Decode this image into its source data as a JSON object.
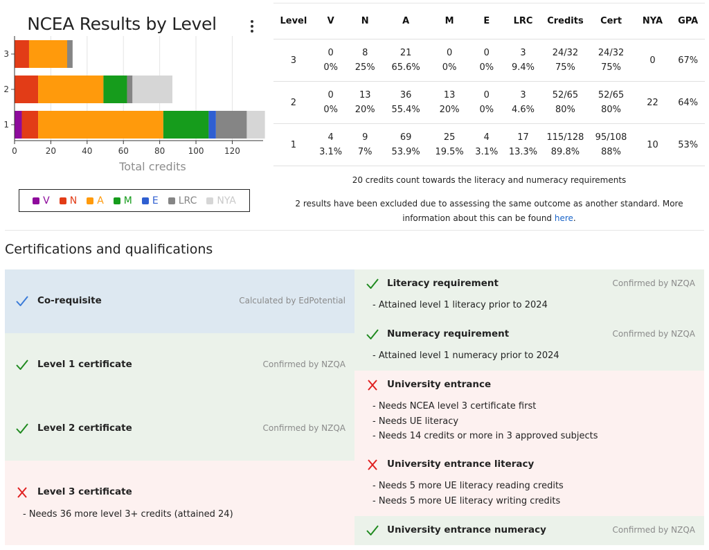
{
  "chart": {
    "title": "NCEA Results by Level",
    "menu_icon": "more-vertical-icon",
    "xlabel": "Total credits"
  },
  "chart_data": {
    "type": "bar",
    "orientation": "horizontal",
    "stacked": true,
    "title": "NCEA Results by Level",
    "xlabel": "Total credits",
    "ylabel": "",
    "categories": [
      "3",
      "2",
      "1"
    ],
    "xlim": [
      0,
      137
    ],
    "xticks": [
      0,
      20,
      40,
      60,
      80,
      100,
      120
    ],
    "grid": true,
    "legend_position": "bottom",
    "series": [
      {
        "name": "V",
        "color": "#8e0b9c",
        "values": [
          0,
          0,
          4
        ]
      },
      {
        "name": "N",
        "color": "#e23c17",
        "values": [
          8,
          13,
          9
        ]
      },
      {
        "name": "A",
        "color": "#ff9a0c",
        "values": [
          21,
          36,
          69
        ]
      },
      {
        "name": "M",
        "color": "#169c1c",
        "values": [
          0,
          13,
          25
        ]
      },
      {
        "name": "E",
        "color": "#2f5fd1",
        "values": [
          0,
          0,
          4
        ]
      },
      {
        "name": "LRC",
        "color": "#858585",
        "values": [
          3,
          3,
          17
        ]
      },
      {
        "name": "NYA",
        "color": "#d6d6d6",
        "values": [
          0,
          22,
          10
        ]
      }
    ]
  },
  "table": {
    "headers": [
      "Level",
      "V",
      "N",
      "A",
      "M",
      "E",
      "LRC",
      "Credits",
      "Cert",
      "NYA",
      "GPA"
    ],
    "rows": [
      {
        "level": "3",
        "v": [
          "0",
          "0%"
        ],
        "n": [
          "8",
          "25%"
        ],
        "a": [
          "21",
          "65.6%"
        ],
        "m": [
          "0",
          "0%"
        ],
        "e": [
          "0",
          "0%"
        ],
        "lrc": [
          "3",
          "9.4%"
        ],
        "credits": [
          "24/32",
          "75%"
        ],
        "cert": [
          "24/32",
          "75%"
        ],
        "nya": "0",
        "gpa": "67%"
      },
      {
        "level": "2",
        "v": [
          "0",
          "0%"
        ],
        "n": [
          "13",
          "20%"
        ],
        "a": [
          "36",
          "55.4%"
        ],
        "m": [
          "13",
          "20%"
        ],
        "e": [
          "0",
          "0%"
        ],
        "lrc": [
          "3",
          "4.6%"
        ],
        "credits": [
          "52/65",
          "80%"
        ],
        "cert": [
          "52/65",
          "80%"
        ],
        "nya": "22",
        "gpa": "64%"
      },
      {
        "level": "1",
        "v": [
          "4",
          "3.1%"
        ],
        "n": [
          "9",
          "7%"
        ],
        "a": [
          "69",
          "53.9%"
        ],
        "m": [
          "25",
          "19.5%"
        ],
        "e": [
          "4",
          "3.1%"
        ],
        "lrc": [
          "17",
          "13.3%"
        ],
        "credits": [
          "115/128",
          "89.8%"
        ],
        "cert": [
          "95/108",
          "88%"
        ],
        "nya": "10",
        "gpa": "53%"
      }
    ],
    "note_literacy": "20 credits count towards the literacy and numeracy requirements",
    "note_excluded": "2 results have been excluded due to assessing the same outcome as another standard. More information about this can be found ",
    "note_link": "here",
    "note_end": "."
  },
  "certifications": {
    "heading": "Certifications and qualifications",
    "left": [
      {
        "title": "Co-requisite",
        "status": "Calculated by EdPotential",
        "icon": "check-icon",
        "state": "info",
        "notes": []
      },
      {
        "title": "Level 1 certificate",
        "status": "Confirmed by NZQA",
        "icon": "check-icon",
        "state": "ok",
        "notes": []
      },
      {
        "title": "Level 2 certificate",
        "status": "Confirmed by NZQA",
        "icon": "check-icon",
        "state": "ok",
        "notes": []
      },
      {
        "title": "Level 3 certificate",
        "status": "",
        "icon": "cross-icon",
        "state": "fail",
        "notes": [
          "- Needs 36 more level 3+ credits (attained 24)"
        ]
      }
    ],
    "right": [
      {
        "title": "Literacy requirement",
        "status": "Confirmed by NZQA",
        "icon": "check-icon",
        "state": "ok",
        "notes": [
          "- Attained level 1 literacy prior to 2024"
        ]
      },
      {
        "title": "Numeracy requirement",
        "status": "Confirmed by NZQA",
        "icon": "check-icon",
        "state": "ok",
        "notes": [
          "- Attained level 1 numeracy prior to 2024"
        ]
      },
      {
        "title": "University entrance",
        "status": "",
        "icon": "cross-icon",
        "state": "fail",
        "notes": [
          "- Needs NCEA level 3 certificate first",
          "- Needs UE literacy",
          "- Needs 14 credits or more in 3 approved subjects"
        ]
      },
      {
        "title": "University entrance literacy",
        "status": "",
        "icon": "cross-icon",
        "state": "fail",
        "notes": [
          "- Needs 5 more UE literacy reading credits",
          "- Needs 5 more UE literacy writing credits"
        ]
      },
      {
        "title": "University entrance numeracy",
        "status": "Confirmed by NZQA",
        "icon": "check-icon",
        "state": "ok",
        "notes": []
      }
    ]
  },
  "colors": {
    "ok_bg": "#ebf2ea",
    "fail_bg": "#fdf1f0",
    "info_bg": "#dde8f1",
    "ok_icon": "#1f8a1f",
    "fail_icon": "#e02020",
    "info_icon": "#3b7bd8",
    "link": "#1a64c8"
  }
}
